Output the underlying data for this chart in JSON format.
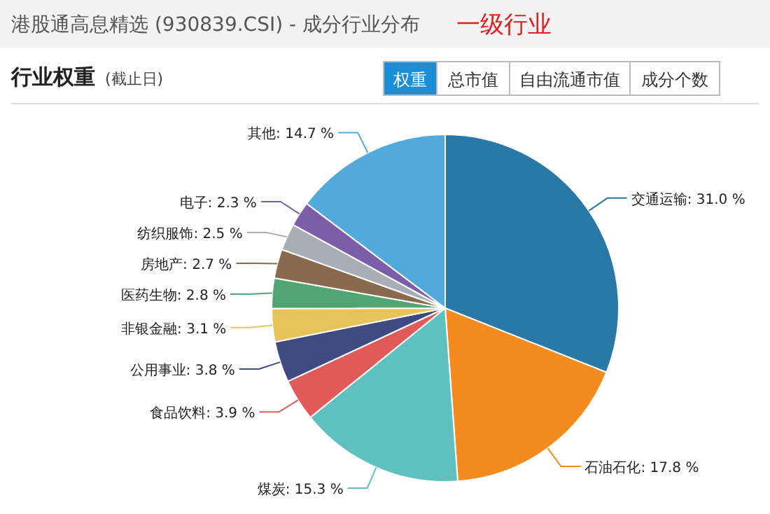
{
  "chart_data": {
    "type": "pie",
    "title": "港股通高息精选 (930839.CSI) - 成分行业分布",
    "subtitle": "一级行业",
    "annotations": [
      "行业权重",
      "(截止日)",
      "权重",
      "总市值",
      "自由流通市值",
      "成分个数"
    ],
    "categories": [
      "交通运输",
      "石油石化",
      "煤炭",
      "食品饮料",
      "公用事业",
      "非银金融",
      "医药生物",
      "房地产",
      "纺织服饰",
      "电子",
      "其他"
    ],
    "values": [
      31.0,
      17.8,
      15.3,
      3.9,
      3.8,
      3.1,
      2.8,
      2.7,
      2.5,
      2.3,
      14.7
    ],
    "value_labels": [
      "31.0 %",
      "17.8 %",
      "15.3 %",
      "3.9 %",
      "3.8 %",
      "3.1 %",
      "2.8 %",
      "2.7 %",
      "2.5 %",
      "2.3 %",
      "14.7 %"
    ],
    "colors": [
      "#2a78a6",
      "#f58a1f",
      "#5ec1bf",
      "#e05a5a",
      "#3f4a80",
      "#e8c35a",
      "#4fa673",
      "#8a6a4c",
      "#a9aeb6",
      "#7c5ea8",
      "#52a9dc"
    ],
    "data_labels": true
  }
}
